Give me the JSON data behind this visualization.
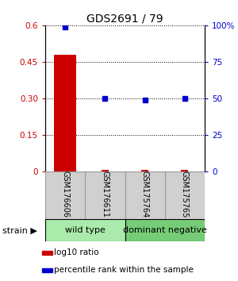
{
  "title": "GDS2691 / 79",
  "samples": [
    "GSM176606",
    "GSM176611",
    "GSM175764",
    "GSM175765"
  ],
  "log10_ratio": [
    0.48,
    0.002,
    0.002,
    0.002
  ],
  "percentile_rank": [
    99.0,
    50.0,
    49.0,
    50.0
  ],
  "ylim_left": [
    0,
    0.6
  ],
  "ylim_right": [
    0,
    100
  ],
  "yticks_left": [
    0,
    0.15,
    0.3,
    0.45,
    0.6
  ],
  "yticks_right": [
    0,
    25,
    50,
    75,
    100
  ],
  "ytick_labels_left": [
    "0",
    "0.15",
    "0.30",
    "0.45",
    "0.6"
  ],
  "ytick_labels_right": [
    "0",
    "25",
    "50",
    "75",
    "100%"
  ],
  "groups": [
    {
      "label": "wild type",
      "color": "#aaeaaa",
      "indices": [
        0,
        1
      ]
    },
    {
      "label": "dominant negative",
      "color": "#77cc77",
      "indices": [
        2,
        3
      ]
    }
  ],
  "bar_color": "#cc0000",
  "marker_color": "#0000cc",
  "background_color": "#ffffff",
  "gray_box_color": "#d0d0d0",
  "gray_box_border": "#999999",
  "title_fontsize": 10,
  "tick_fontsize": 7.5,
  "sample_fontsize": 7,
  "group_fontsize": 8,
  "legend_fontsize": 7.5,
  "strain_label": "strain",
  "legend_items": [
    {
      "color": "#cc0000",
      "label": "log10 ratio"
    },
    {
      "color": "#0000cc",
      "label": "percentile rank within the sample"
    }
  ]
}
